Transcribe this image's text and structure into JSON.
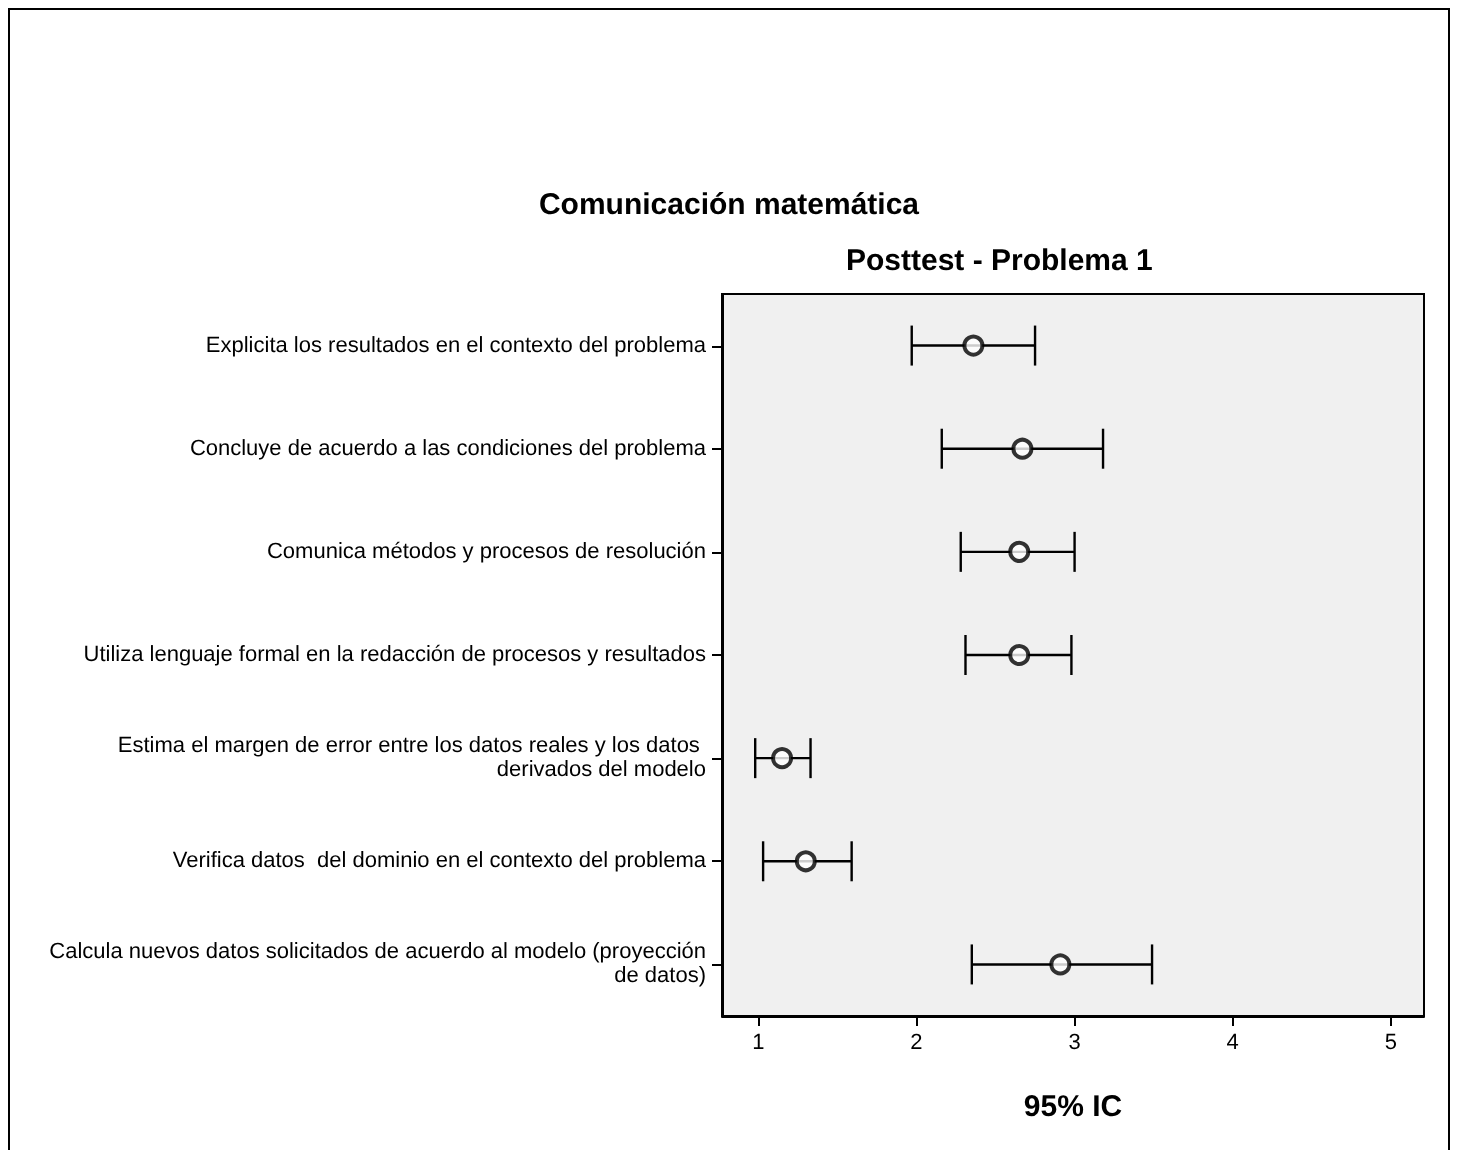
{
  "chart_data": {
    "type": "scatter",
    "orientation": "horizontal",
    "title": "Comunicación matemática",
    "subtitle": "Posttest - Problema 1",
    "xlabel": "95% IC",
    "categories": [
      "Explicita los resultados en el contexto del problema",
      "Concluye de acuerdo a las condiciones del problema",
      "Comunica métodos y procesos de resolución",
      "Utiliza lenguaje formal en la redacción de procesos y resultados",
      "Estima el margen de error entre los datos reales y los datos derivados del modelo",
      "Verifica datos  del dominio en el contexto del problema",
      "Calcula nuevos datos solicitados de acuerdo al modelo (proyección de datos)"
    ],
    "values": [
      2.36,
      2.67,
      2.65,
      2.65,
      1.15,
      1.3,
      2.91
    ],
    "errors": [
      [
        1.97,
        2.75
      ],
      [
        2.16,
        3.18
      ],
      [
        2.28,
        3.0
      ],
      [
        2.31,
        2.98
      ],
      [
        0.98,
        1.33
      ],
      [
        1.03,
        1.59
      ],
      [
        2.35,
        3.49
      ]
    ],
    "color": "#000000",
    "marker": "circle",
    "grid": false,
    "legend": false,
    "xlim": [
      0.77,
      5.21
    ],
    "xticks": [
      1,
      2,
      3,
      4,
      5
    ]
  }
}
